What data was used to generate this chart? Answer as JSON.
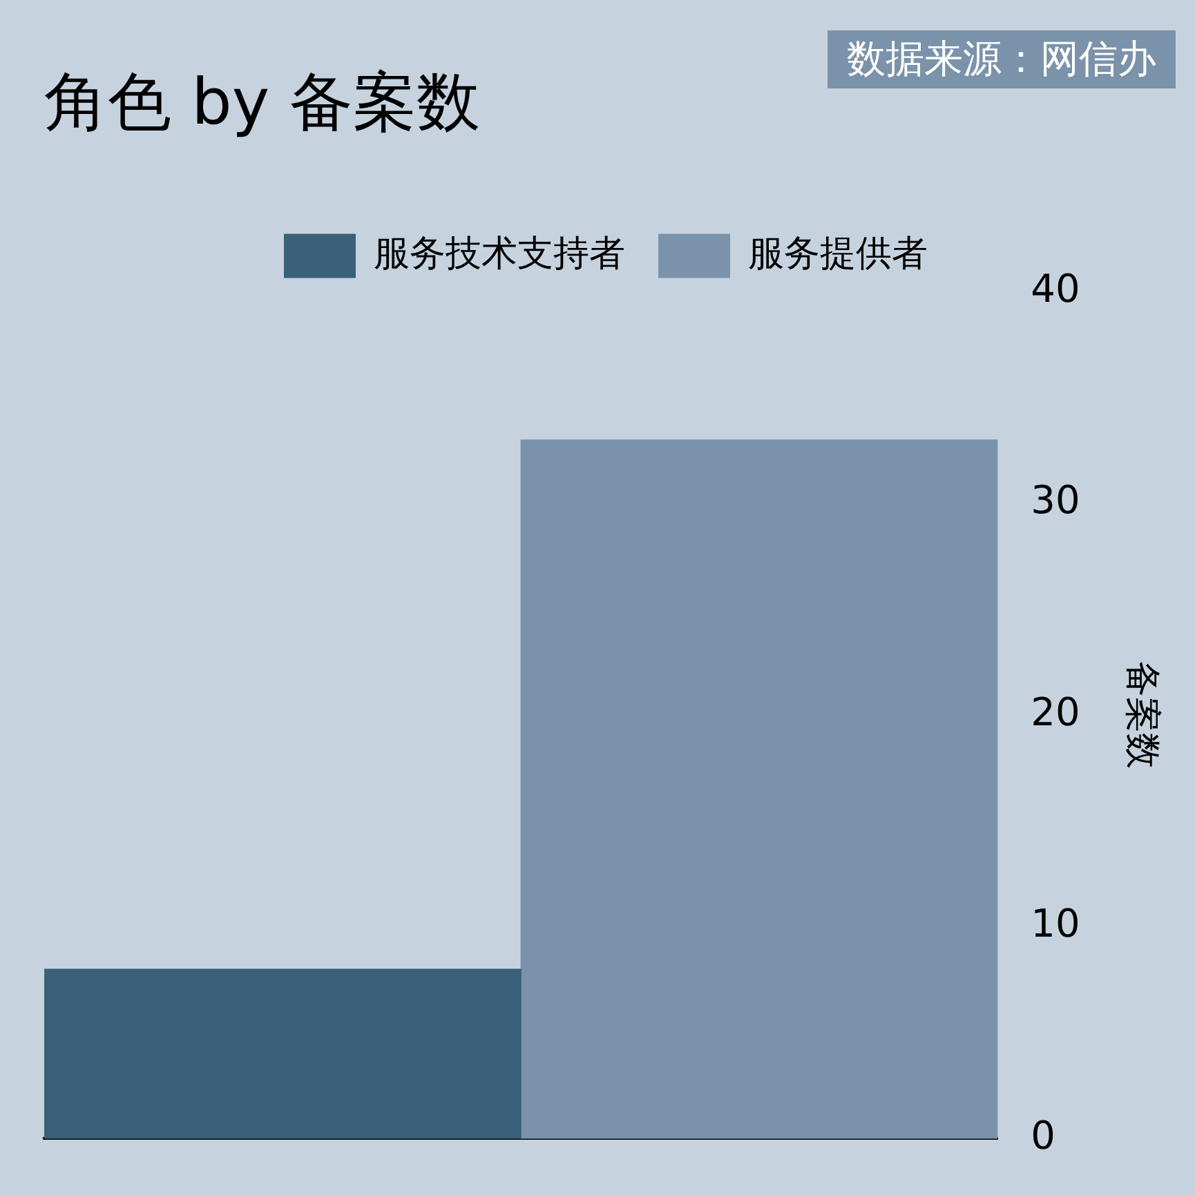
{
  "chart_data": {
    "type": "bar",
    "title": "角色 by 备案数",
    "ylabel": "备案数",
    "annotations": [
      "数据来源：网信办"
    ],
    "categories": [
      null,
      null
    ],
    "series": [
      {
        "name": "服务技术支持者",
        "color": "#3b6079",
        "values": [
          8,
          null
        ]
      },
      {
        "name": "服务提供者",
        "color": "#7b93aa",
        "values": [
          null,
          33
        ]
      }
    ],
    "ylim": [
      0,
      40
    ],
    "yticks": [
      0,
      10,
      20,
      30,
      40
    ],
    "grid": false,
    "legend": "top"
  }
}
